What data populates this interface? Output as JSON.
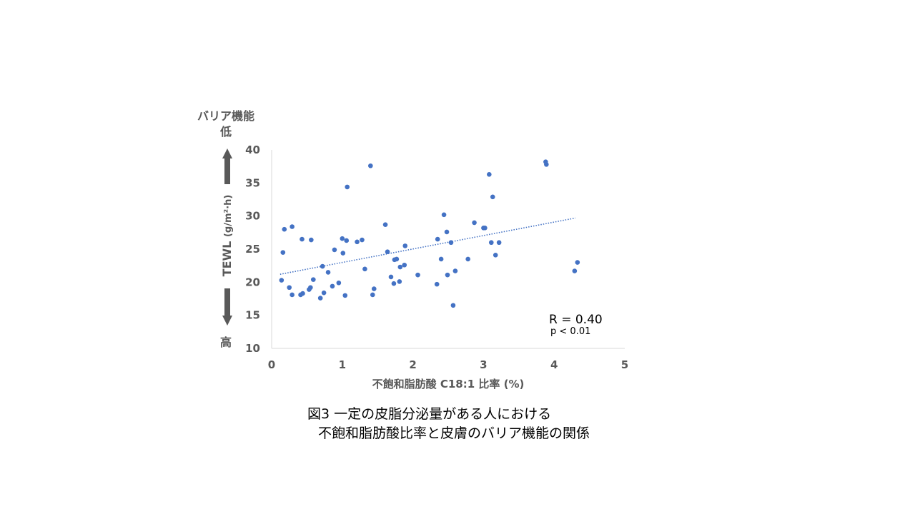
{
  "chart_data": {
    "type": "scatter",
    "xlabel": "不飽和脂肪酸 C18:1 比率 (%)",
    "ylabel_main": "TEWL",
    "ylabel_unit": "(g/m²·h)",
    "y_top_label": [
      "バリア機能",
      "低"
    ],
    "y_bottom_label": "高",
    "xlim": [
      0,
      5
    ],
    "ylim": [
      10,
      40
    ],
    "x_ticks": [
      0,
      1,
      2,
      3,
      4,
      5
    ],
    "y_ticks": [
      10,
      15,
      20,
      25,
      30,
      35,
      40
    ],
    "grid": false,
    "marker_color": "#4472c4",
    "arrow_color": "#595959",
    "trendline": {
      "style": "dotted",
      "color": "#4472c4",
      "x": [
        0.12,
        4.3
      ],
      "y": [
        21.2,
        29.7
      ]
    },
    "annotation_r": "R = 0.40",
    "annotation_p": "p < 0.01",
    "points": [
      {
        "x": 0.14,
        "y": 20.3
      },
      {
        "x": 0.16,
        "y": 24.5
      },
      {
        "x": 0.18,
        "y": 28.0
      },
      {
        "x": 0.25,
        "y": 19.2
      },
      {
        "x": 0.29,
        "y": 18.1
      },
      {
        "x": 0.29,
        "y": 28.4
      },
      {
        "x": 0.41,
        "y": 18.1
      },
      {
        "x": 0.43,
        "y": 26.5
      },
      {
        "x": 0.44,
        "y": 18.3
      },
      {
        "x": 0.53,
        "y": 18.9
      },
      {
        "x": 0.55,
        "y": 19.2
      },
      {
        "x": 0.56,
        "y": 26.4
      },
      {
        "x": 0.59,
        "y": 20.4
      },
      {
        "x": 0.69,
        "y": 17.6
      },
      {
        "x": 0.72,
        "y": 22.4
      },
      {
        "x": 0.74,
        "y": 18.4
      },
      {
        "x": 0.8,
        "y": 21.5
      },
      {
        "x": 0.86,
        "y": 19.4
      },
      {
        "x": 0.89,
        "y": 24.9
      },
      {
        "x": 0.95,
        "y": 19.9
      },
      {
        "x": 1.0,
        "y": 26.6
      },
      {
        "x": 1.01,
        "y": 24.4
      },
      {
        "x": 1.04,
        "y": 18.0
      },
      {
        "x": 1.06,
        "y": 26.3
      },
      {
        "x": 1.07,
        "y": 34.4
      },
      {
        "x": 1.21,
        "y": 26.1
      },
      {
        "x": 1.28,
        "y": 26.4
      },
      {
        "x": 1.32,
        "y": 22.0
      },
      {
        "x": 1.4,
        "y": 37.6
      },
      {
        "x": 1.43,
        "y": 18.1
      },
      {
        "x": 1.45,
        "y": 19.0
      },
      {
        "x": 1.61,
        "y": 28.7
      },
      {
        "x": 1.64,
        "y": 24.6
      },
      {
        "x": 1.69,
        "y": 20.8
      },
      {
        "x": 1.73,
        "y": 19.8
      },
      {
        "x": 1.74,
        "y": 23.4
      },
      {
        "x": 1.77,
        "y": 23.5
      },
      {
        "x": 1.81,
        "y": 20.1
      },
      {
        "x": 1.82,
        "y": 22.3
      },
      {
        "x": 1.88,
        "y": 22.6
      },
      {
        "x": 1.89,
        "y": 25.5
      },
      {
        "x": 2.07,
        "y": 21.1
      },
      {
        "x": 2.34,
        "y": 19.7
      },
      {
        "x": 2.35,
        "y": 26.5
      },
      {
        "x": 2.4,
        "y": 23.5
      },
      {
        "x": 2.44,
        "y": 30.2
      },
      {
        "x": 2.48,
        "y": 27.6
      },
      {
        "x": 2.49,
        "y": 21.1
      },
      {
        "x": 2.54,
        "y": 26.0
      },
      {
        "x": 2.57,
        "y": 16.5
      },
      {
        "x": 2.6,
        "y": 21.7
      },
      {
        "x": 2.78,
        "y": 23.5
      },
      {
        "x": 2.87,
        "y": 29.0
      },
      {
        "x": 3.0,
        "y": 28.2
      },
      {
        "x": 3.02,
        "y": 28.2
      },
      {
        "x": 3.08,
        "y": 36.3
      },
      {
        "x": 3.11,
        "y": 26.0
      },
      {
        "x": 3.13,
        "y": 32.9
      },
      {
        "x": 3.17,
        "y": 24.1
      },
      {
        "x": 3.22,
        "y": 26.0
      },
      {
        "x": 3.88,
        "y": 38.2
      },
      {
        "x": 3.89,
        "y": 37.8
      },
      {
        "x": 4.29,
        "y": 21.7
      },
      {
        "x": 4.33,
        "y": 23.0
      }
    ]
  },
  "caption": {
    "line1": "図3 一定の皮脂分泌量がある人における",
    "line2": "不飽和脂肪酸比率と皮膚のバリア機能の関係"
  }
}
